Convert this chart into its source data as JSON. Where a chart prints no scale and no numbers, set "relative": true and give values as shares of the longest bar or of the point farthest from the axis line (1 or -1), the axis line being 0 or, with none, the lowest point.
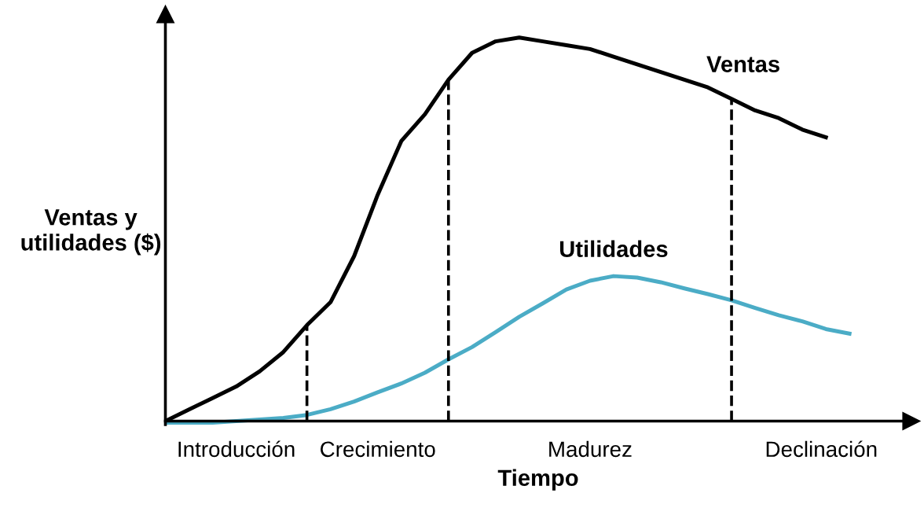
{
  "chart_data": {
    "type": "line",
    "relative": true,
    "xlabel": "Tiempo",
    "ylabel": "Ventas y\nutilidades ($)",
    "categories": [
      null,
      null,
      null,
      null,
      null,
      null,
      null,
      null,
      null,
      null,
      null,
      null,
      null,
      null,
      null,
      null,
      null,
      null,
      null,
      null,
      null,
      null,
      null,
      null,
      null,
      null,
      null,
      null,
      null,
      null
    ],
    "series": [
      {
        "name": "Ventas",
        "color": "#000000",
        "values": [
          0,
          0.03,
          0.06,
          0.09,
          0.13,
          0.18,
          0.25,
          0.31,
          0.43,
          0.59,
          0.73,
          0.8,
          0.89,
          0.96,
          0.99,
          1.0,
          0.99,
          0.98,
          0.97,
          0.95,
          0.93,
          0.91,
          0.89,
          0.87,
          0.84,
          0.81,
          0.79,
          0.76,
          0.74,
          null
        ]
      },
      {
        "name": "Utilidades",
        "color": "#4bacc6",
        "values": [
          -0.004,
          -0.004,
          -0.004,
          0,
          0.004,
          0.008,
          0.016,
          0.031,
          0.051,
          0.075,
          0.098,
          0.126,
          0.161,
          0.193,
          0.232,
          0.272,
          0.307,
          0.343,
          0.366,
          0.378,
          0.374,
          0.362,
          0.346,
          0.331,
          0.315,
          0.295,
          0.276,
          0.26,
          0.24,
          0.228
        ]
      }
    ],
    "annotations": [
      "Introducción",
      "Crecimiento",
      "Madurez",
      "Declinación"
    ],
    "legend": false,
    "marker": "none",
    "line_style": "solid"
  }
}
